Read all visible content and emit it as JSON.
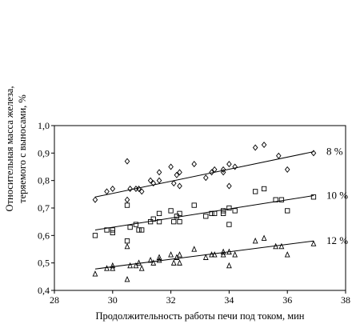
{
  "chart_data": {
    "type": "scatter",
    "xlabel": "Продолжительность работы печи под током, мин",
    "ylabel_lines": [
      "Относительная масса железа,",
      "теряемого с выносами, %"
    ],
    "xlim": [
      28,
      38
    ],
    "ylim": [
      0.4,
      1.0
    ],
    "x_ticks": [
      28,
      30,
      32,
      34,
      36,
      38
    ],
    "y_ticks": [
      0.4,
      0.5,
      0.6,
      0.7,
      0.8,
      0.9,
      1.0
    ],
    "x_tick_labels": [
      "28",
      "30",
      "32",
      "34",
      "36",
      "38"
    ],
    "y_tick_labels": [
      "0,4",
      "0,5",
      "0,6",
      "0,7",
      "0,8",
      "0,9",
      "1,0"
    ],
    "grid": false,
    "series": [
      {
        "name": "8 %",
        "marker": "diamond",
        "trend": [
          [
            29.4,
            0.74
          ],
          [
            36.9,
            0.905
          ]
        ],
        "points": [
          [
            29.4,
            0.73
          ],
          [
            29.8,
            0.76
          ],
          [
            30.0,
            0.77
          ],
          [
            30.5,
            0.87
          ],
          [
            30.5,
            0.73
          ],
          [
            30.6,
            0.77
          ],
          [
            30.8,
            0.77
          ],
          [
            30.9,
            0.77
          ],
          [
            31.0,
            0.76
          ],
          [
            31.3,
            0.8
          ],
          [
            31.4,
            0.79
          ],
          [
            31.6,
            0.83
          ],
          [
            31.6,
            0.8
          ],
          [
            32.0,
            0.85
          ],
          [
            32.1,
            0.79
          ],
          [
            32.2,
            0.82
          ],
          [
            32.3,
            0.78
          ],
          [
            32.3,
            0.83
          ],
          [
            32.8,
            0.86
          ],
          [
            33.2,
            0.81
          ],
          [
            33.4,
            0.83
          ],
          [
            33.5,
            0.84
          ],
          [
            33.8,
            0.84
          ],
          [
            33.8,
            0.83
          ],
          [
            34.0,
            0.86
          ],
          [
            34.0,
            0.78
          ],
          [
            34.2,
            0.85
          ],
          [
            34.9,
            0.92
          ],
          [
            35.2,
            0.93
          ],
          [
            35.7,
            0.89
          ],
          [
            36.0,
            0.84
          ],
          [
            36.9,
            0.9
          ]
        ]
      },
      {
        "name": "10 %",
        "marker": "square",
        "trend": [
          [
            29.4,
            0.62
          ],
          [
            36.9,
            0.745
          ]
        ],
        "points": [
          [
            29.4,
            0.6
          ],
          [
            29.8,
            0.62
          ],
          [
            30.0,
            0.62
          ],
          [
            30.0,
            0.61
          ],
          [
            30.5,
            0.71
          ],
          [
            30.5,
            0.58
          ],
          [
            30.6,
            0.63
          ],
          [
            30.8,
            0.64
          ],
          [
            30.9,
            0.62
          ],
          [
            31.0,
            0.62
          ],
          [
            31.3,
            0.65
          ],
          [
            31.4,
            0.66
          ],
          [
            31.6,
            0.68
          ],
          [
            31.6,
            0.65
          ],
          [
            32.0,
            0.69
          ],
          [
            32.1,
            0.65
          ],
          [
            32.2,
            0.67
          ],
          [
            32.3,
            0.68
          ],
          [
            32.3,
            0.65
          ],
          [
            32.8,
            0.71
          ],
          [
            33.2,
            0.67
          ],
          [
            33.4,
            0.68
          ],
          [
            33.5,
            0.68
          ],
          [
            33.8,
            0.69
          ],
          [
            33.8,
            0.68
          ],
          [
            34.0,
            0.7
          ],
          [
            34.0,
            0.64
          ],
          [
            34.2,
            0.69
          ],
          [
            34.9,
            0.76
          ],
          [
            35.2,
            0.77
          ],
          [
            35.6,
            0.73
          ],
          [
            35.8,
            0.73
          ],
          [
            36.0,
            0.69
          ],
          [
            36.9,
            0.74
          ]
        ]
      },
      {
        "name": "12 %",
        "marker": "triangle",
        "trend": [
          [
            29.4,
            0.478
          ],
          [
            36.9,
            0.58
          ]
        ],
        "points": [
          [
            29.4,
            0.46
          ],
          [
            29.8,
            0.48
          ],
          [
            30.0,
            0.49
          ],
          [
            30.0,
            0.48
          ],
          [
            30.5,
            0.56
          ],
          [
            30.5,
            0.44
          ],
          [
            30.6,
            0.49
          ],
          [
            30.8,
            0.49
          ],
          [
            30.9,
            0.5
          ],
          [
            31.0,
            0.48
          ],
          [
            31.3,
            0.51
          ],
          [
            31.4,
            0.5
          ],
          [
            31.6,
            0.52
          ],
          [
            31.6,
            0.51
          ],
          [
            32.0,
            0.53
          ],
          [
            32.1,
            0.5
          ],
          [
            32.2,
            0.52
          ],
          [
            32.3,
            0.53
          ],
          [
            32.3,
            0.5
          ],
          [
            32.8,
            0.55
          ],
          [
            33.2,
            0.52
          ],
          [
            33.4,
            0.53
          ],
          [
            33.5,
            0.53
          ],
          [
            33.8,
            0.54
          ],
          [
            33.8,
            0.53
          ],
          [
            34.0,
            0.54
          ],
          [
            34.0,
            0.49
          ],
          [
            34.2,
            0.53
          ],
          [
            34.9,
            0.58
          ],
          [
            35.2,
            0.59
          ],
          [
            35.6,
            0.56
          ],
          [
            35.8,
            0.56
          ],
          [
            36.0,
            0.53
          ],
          [
            36.9,
            0.57
          ]
        ]
      }
    ]
  }
}
